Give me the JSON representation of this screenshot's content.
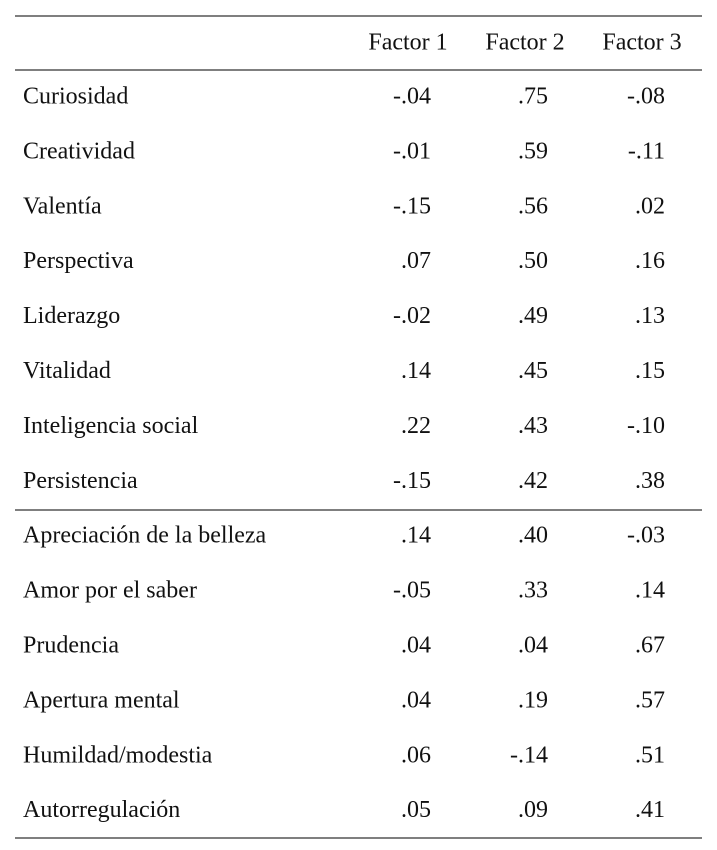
{
  "table": {
    "header": [
      "Factor 1",
      "Factor 2",
      "Factor 3"
    ],
    "rows": [
      [
        "Curiosidad",
        "-.04",
        ".75",
        "-.08"
      ],
      [
        "Creatividad",
        "-.01",
        ".59",
        "-.11"
      ],
      [
        "Valentía",
        "-.15",
        ".56",
        ".02"
      ],
      [
        "Perspectiva",
        ".07",
        ".50",
        ".16"
      ],
      [
        "Liderazgo",
        "-.02",
        ".49",
        ".13"
      ],
      [
        "Vitalidad",
        ".14",
        ".45",
        ".15"
      ],
      [
        "Inteligencia social",
        ".22",
        ".43",
        "-.10"
      ],
      [
        "Persistencia",
        "-.15",
        ".42",
        ".38"
      ],
      [
        "Apreciación de la belleza",
        ".14",
        ".40",
        "-.03"
      ],
      [
        "Amor por el saber",
        "-.05",
        ".33",
        ".14"
      ],
      [
        "Prudencia",
        ".04",
        ".04",
        ".67"
      ],
      [
        "Apertura mental",
        ".04",
        ".19",
        ".57"
      ],
      [
        "Humildad/modestia",
        ".06",
        "-.14",
        ".51"
      ],
      [
        "Autorregulación",
        ".05",
        ".09",
        ".41"
      ]
    ]
  }
}
